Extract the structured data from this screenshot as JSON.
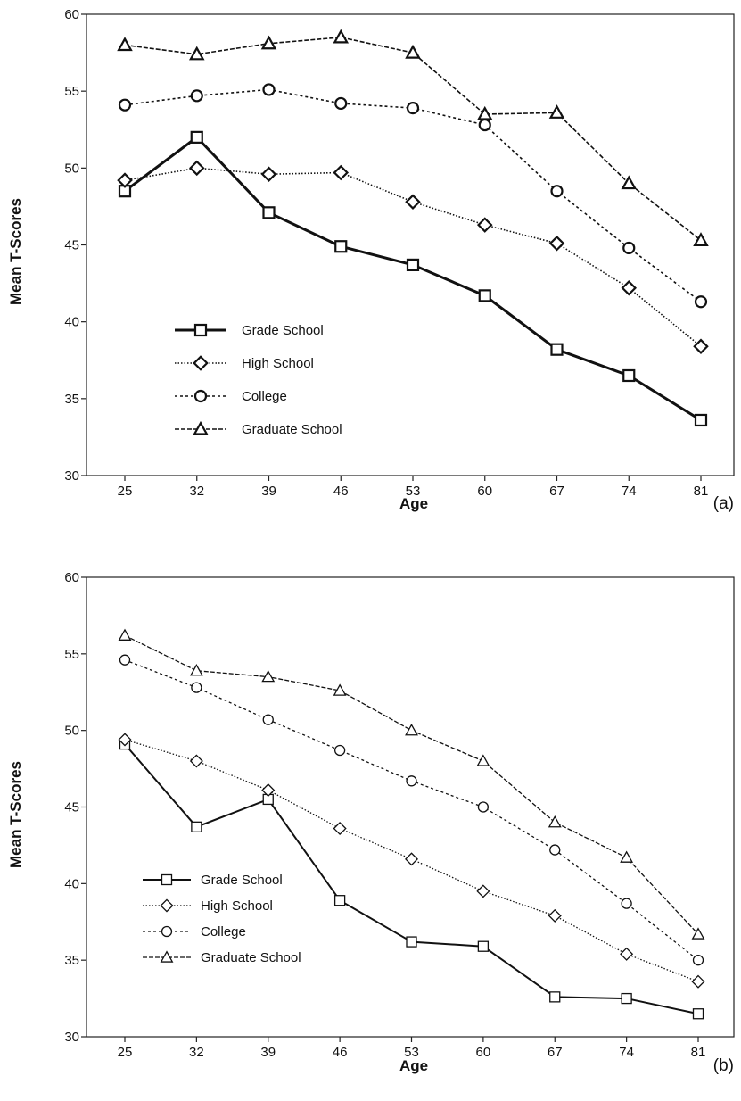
{
  "chart_data": [
    {
      "type": "line",
      "panel_label": "(a)",
      "xlabel": "Age",
      "ylabel": "Mean T-Scores",
      "x": [
        25,
        32,
        39,
        46,
        53,
        60,
        67,
        74,
        81
      ],
      "x_tick_labels": [
        "25",
        "32",
        "39",
        "46",
        "53",
        "60",
        "67",
        "74",
        "81"
      ],
      "ylim": [
        30,
        60
      ],
      "y_ticks": [
        30,
        35,
        40,
        45,
        50,
        55,
        60
      ],
      "y_tick_labels": [
        "30",
        "35",
        "40",
        "45",
        "50",
        "55",
        "60"
      ],
      "grid": false,
      "legend_position": "lower-left",
      "marker_fill": "#ffffff",
      "series": [
        {
          "name": "Grade School",
          "marker": "square",
          "line": "solid",
          "values": [
            48.5,
            52.0,
            47.1,
            44.9,
            43.7,
            41.7,
            38.2,
            36.5,
            33.6
          ]
        },
        {
          "name": "High School",
          "marker": "diamond",
          "line": "dotted",
          "values": [
            49.2,
            50.0,
            49.6,
            49.7,
            47.8,
            46.3,
            45.1,
            42.2,
            38.4
          ]
        },
        {
          "name": "College",
          "marker": "circle",
          "line": "dashed",
          "values": [
            54.1,
            54.7,
            55.1,
            54.2,
            53.9,
            52.8,
            48.5,
            44.8,
            41.3
          ]
        },
        {
          "name": "Graduate School",
          "marker": "triangle",
          "line": "dash",
          "values": [
            58.0,
            57.4,
            58.1,
            58.5,
            57.5,
            53.5,
            53.6,
            49.0,
            45.3
          ]
        }
      ]
    },
    {
      "type": "line",
      "panel_label": "(b)",
      "xlabel": "Age",
      "ylabel": "Mean T-Scores",
      "x": [
        25,
        32,
        39,
        46,
        53,
        60,
        67,
        74,
        81
      ],
      "x_tick_labels": [
        "25",
        "32",
        "39",
        "46",
        "53",
        "60",
        "67",
        "74",
        "81"
      ],
      "ylim": [
        30,
        60
      ],
      "y_ticks": [
        30,
        35,
        40,
        45,
        50,
        55,
        60
      ],
      "y_tick_labels": [
        "30",
        "35",
        "40",
        "45",
        "50",
        "55",
        "60"
      ],
      "grid": false,
      "legend_position": "lower-left",
      "marker_fill": "#ffffff",
      "series": [
        {
          "name": "Grade School",
          "marker": "square",
          "line": "solid",
          "values": [
            49.1,
            43.7,
            45.5,
            38.9,
            36.2,
            35.9,
            32.6,
            32.5,
            31.5
          ]
        },
        {
          "name": "High School",
          "marker": "diamond",
          "line": "dotted",
          "values": [
            49.4,
            48.0,
            46.1,
            43.6,
            41.6,
            39.5,
            37.9,
            35.4,
            33.6
          ]
        },
        {
          "name": "College",
          "marker": "circle",
          "line": "dashed",
          "values": [
            54.6,
            52.8,
            50.7,
            48.7,
            46.7,
            45.0,
            42.2,
            38.7,
            35.0
          ]
        },
        {
          "name": "Graduate School",
          "marker": "triangle",
          "line": "dash",
          "values": [
            56.2,
            53.9,
            53.5,
            52.6,
            50.0,
            48.0,
            44.0,
            41.7,
            36.7
          ]
        }
      ]
    }
  ]
}
